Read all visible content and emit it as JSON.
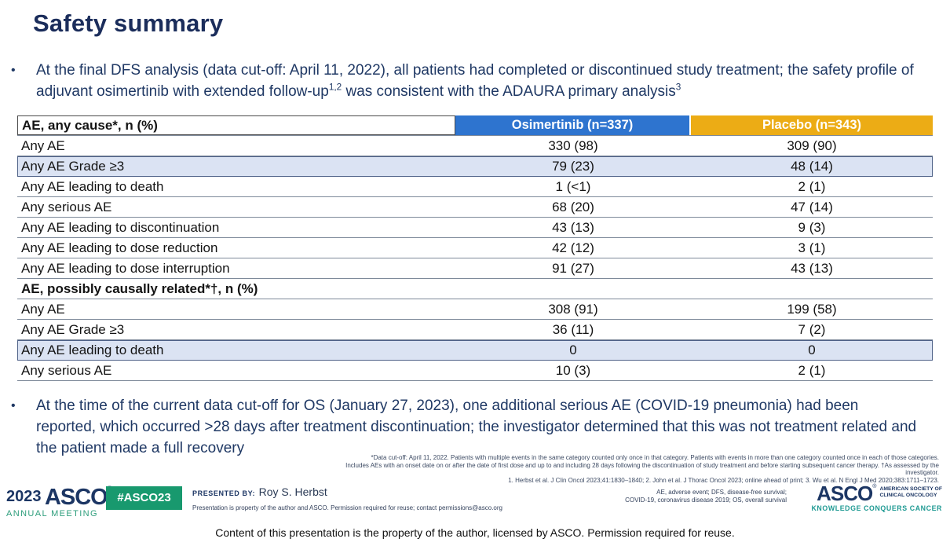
{
  "slide": {
    "title": "Safety summary",
    "bullet_marker": "•",
    "bullet1": {
      "part1": "At the final DFS analysis (data cut-off: April 11, 2022), all patients had completed or discontinued study treatment; the safety profile of adjuvant osimertinib with extended follow-up",
      "sup1": "1,2",
      "part2": " was consistent with the ADAURA primary analysis",
      "sup2": "3"
    },
    "bullet2": "At the time of the current data cut-off for OS (January 27, 2023), one additional serious AE (COVID-19 pneumonia) had been reported, which occurred >28 days after treatment discontinuation; the investigator determined that this was not treatment related and the patient made a full recovery",
    "footnotes": {
      "line1": "*Data cut-off: April 11, 2022. Patients with multiple events in the same category counted only once in that category. Patients with events in more than one category counted once in each of those categories.",
      "line2": "Includes AEs with an onset date on or after the date of first dose and up to and including 28 days following the discontinuation of study treatment and before starting subsequent cancer therapy. †As assessed by the investigator.",
      "line3": "1. Herbst et al. J Clin Oncol 2023;41:1830–1840; 2. John et al. J Thorac Oncol 2023; online ahead of print; 3. Wu et al. N Engl J Med 2020;383:1711–1723."
    },
    "caption": "Content of this presentation is the property of the author, licensed by ASCO. Permission required for reuse."
  },
  "table": {
    "header": {
      "col1": "AE, any cause*, n (%)",
      "col2": "Osimertinib (n=337)",
      "col3": "Placebo (n=343)"
    },
    "colors": {
      "osimertinib_header": "#2e74cf",
      "placebo_header": "#ecac15",
      "highlight_row": "#dbe3f3"
    },
    "rows": [
      {
        "label": "Any AE",
        "osimertinib": "330 (98)",
        "placebo": "309 (90)"
      },
      {
        "label": "Any AE Grade ≥3",
        "osimertinib": "79 (23)",
        "placebo": "48 (14)",
        "highlight": true
      },
      {
        "label": "Any AE leading to death",
        "osimertinib": "1 (<1)",
        "placebo": "2 (1)"
      },
      {
        "label": "Any serious AE",
        "osimertinib": "68 (20)",
        "placebo": "47 (14)"
      },
      {
        "label": "Any AE leading to discontinuation",
        "osimertinib": "43 (13)",
        "placebo": "9 (3)"
      },
      {
        "label": "Any AE leading to dose reduction",
        "osimertinib": "42 (12)",
        "placebo": "3 (1)"
      },
      {
        "label": "Any AE leading to dose interruption",
        "osimertinib": "91 (27)",
        "placebo": "43 (13)"
      },
      {
        "label": "AE, possibly causally related*†, n (%)",
        "osimertinib": "",
        "placebo": "",
        "section": true
      },
      {
        "label": "Any AE",
        "osimertinib": "308 (91)",
        "placebo": "199 (58)"
      },
      {
        "label": "Any AE Grade ≥3",
        "osimertinib": "36 (11)",
        "placebo": "7 (2)"
      },
      {
        "label": "Any AE leading to death",
        "osimertinib": "0",
        "placebo": "0",
        "highlight": true
      },
      {
        "label": "Any serious AE",
        "osimertinib": "10 (3)",
        "placebo": "2 (1)"
      }
    ]
  },
  "footer": {
    "meeting_logo": {
      "year": "2023",
      "org": "ASCO",
      "reg": "®",
      "line2": "ANNUAL MEETING"
    },
    "hashtag_badge": "#ASCO23",
    "presented_by_label": "PRESENTED BY:",
    "presenter_name": "Roy S. Herbst",
    "presenter_note": "Presentation is property of the author and ASCO. Permission required for reuse; contact permissions@asco.org",
    "abbreviations_line1": "AE,  adverse event;  DFS,  disease-free survival;",
    "abbreviations_line2": "COVID-19,  coronavirus disease 2019; OS, overall survival",
    "asco_logo": {
      "org": "ASCO",
      "reg": "®",
      "society_line1": "AMERICAN SOCIETY OF",
      "society_line2": "CLINICAL ONCOLOGY",
      "tagline": "KNOWLEDGE CONQUERS CANCER"
    }
  }
}
